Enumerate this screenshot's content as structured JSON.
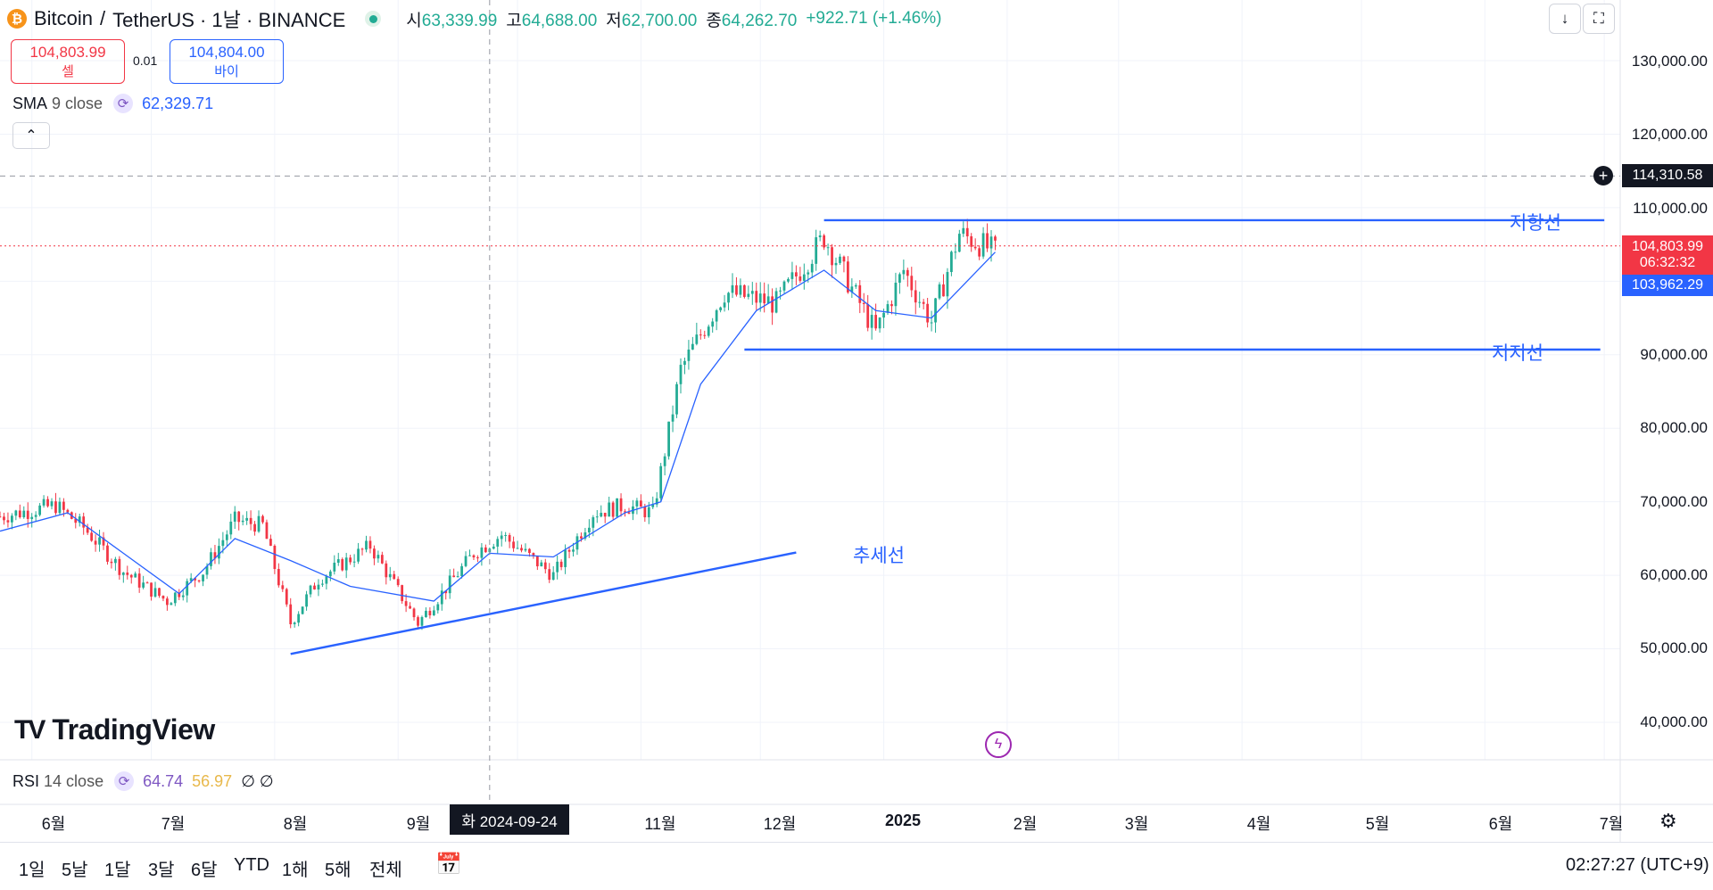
{
  "header": {
    "coin_glyph": "₿",
    "symbol": "Bitcoin",
    "separator": "/",
    "quote": "TetherUS · 1날 · BINANCE",
    "ohlc": [
      {
        "label": "시",
        "value": "63,339.99"
      },
      {
        "label": "고",
        "value": "64,688.00"
      },
      {
        "label": "저",
        "value": "62,700.00"
      },
      {
        "label": "종",
        "value": "64,262.70"
      }
    ],
    "change": "+922.71 (+1.46%)"
  },
  "trade": {
    "sell_price": "104,803.99",
    "sell_label": "셀",
    "lot": "0.01",
    "buy_price": "104,804.00",
    "buy_label": "바이"
  },
  "indicators": {
    "sma": {
      "name": "SMA",
      "params": "9 close",
      "value": "62,329.71"
    },
    "rsi": {
      "name": "RSI",
      "params": "14 close",
      "value1": "64.74",
      "value2": "56.97",
      "value3": "∅",
      "value4": "∅"
    }
  },
  "logo": {
    "mark": "TV",
    "text": "TradingView"
  },
  "price_axis": {
    "labels": [
      "130,000.00",
      "120,000.00",
      "110,000.00",
      "90,000.00",
      "80,000.00",
      "70,000.00",
      "60,000.00",
      "50,000.00",
      "40,000.00"
    ],
    "crosshair_price": "114,310.58",
    "last_price": "104,803.99",
    "countdown": "06:32:32",
    "sma_price": "103,962.29"
  },
  "time_axis": {
    "labels": [
      "6월",
      "7월",
      "8월",
      "9월",
      "11월",
      "12월",
      "2025",
      "2월",
      "3월",
      "4월",
      "5월",
      "6월",
      "7월"
    ],
    "crosshair_date": "화 2024-09-24"
  },
  "annotations": {
    "resistance": "저항선",
    "support": "지지선",
    "trend": "추세선"
  },
  "bottom_bar": {
    "ranges": [
      "1일",
      "5날",
      "1달",
      "3달",
      "6달",
      "YTD",
      "1해",
      "5해",
      "전체"
    ],
    "clock": "02:27:27 (UTC+9)"
  },
  "colors": {
    "up": "#22ab94",
    "down": "#f23645",
    "sma": "#2962ff",
    "lines": "#2962ff",
    "sell": "#f23645",
    "buy": "#2962ff"
  },
  "chart_data": {
    "type": "candlestick",
    "interval": "1 day",
    "x_range": [
      "2024-05-24",
      "2025-07-05"
    ],
    "ylim": [
      35000,
      135000
    ],
    "y_ticks": [
      40000,
      50000,
      60000,
      70000,
      80000,
      90000,
      100000,
      110000,
      120000,
      130000
    ],
    "grid": true,
    "close_path": [
      [
        "2024-05-24",
        68000
      ],
      [
        "2024-06-07",
        69500
      ],
      [
        "2024-06-14",
        66500
      ],
      [
        "2024-06-24",
        60500
      ],
      [
        "2024-07-05",
        56500
      ],
      [
        "2024-07-14",
        60500
      ],
      [
        "2024-07-22",
        67500
      ],
      [
        "2024-07-29",
        66800
      ],
      [
        "2024-08-05",
        53500
      ],
      [
        "2024-08-12",
        59500
      ],
      [
        "2024-08-25",
        64000
      ],
      [
        "2024-09-06",
        53500
      ],
      [
        "2024-09-20",
        63000
      ],
      [
        "2024-09-27",
        65500
      ],
      [
        "2024-10-10",
        60000
      ],
      [
        "2024-10-20",
        68500
      ],
      [
        "2024-10-28",
        69500
      ],
      [
        "2024-11-04",
        68500
      ],
      [
        "2024-11-11",
        88000
      ],
      [
        "2024-11-22",
        98500
      ],
      [
        "2024-12-05",
        97000
      ],
      [
        "2024-12-17",
        106000
      ],
      [
        "2024-12-30",
        93000
      ],
      [
        "2025-01-06",
        101500
      ],
      [
        "2025-01-13",
        94500
      ],
      [
        "2025-01-20",
        106500
      ],
      [
        "2025-01-29",
        104000
      ]
    ],
    "sma9_path": [
      [
        "2024-05-24",
        66000
      ],
      [
        "2024-06-10",
        68500
      ],
      [
        "2024-06-24",
        63000
      ],
      [
        "2024-07-08",
        57500
      ],
      [
        "2024-07-22",
        65000
      ],
      [
        "2024-08-05",
        62000
      ],
      [
        "2024-08-20",
        58500
      ],
      [
        "2024-09-10",
        56500
      ],
      [
        "2024-09-24",
        63000
      ],
      [
        "2024-10-10",
        62500
      ],
      [
        "2024-10-28",
        68500
      ],
      [
        "2024-11-06",
        70000
      ],
      [
        "2024-11-16",
        86000
      ],
      [
        "2024-11-30",
        96000
      ],
      [
        "2024-12-17",
        101500
      ],
      [
        "2024-12-30",
        96000
      ],
      [
        "2025-01-13",
        95000
      ],
      [
        "2025-01-29",
        103962
      ]
    ],
    "current_price": 104803.99,
    "crosshair": {
      "date": "2024-09-24",
      "price": 114310.58
    },
    "drawings": [
      {
        "label": "저항선",
        "from": [
          "2024-12-17",
          108300
        ],
        "to": [
          "2025-07-01",
          108300
        ]
      },
      {
        "label": "지지선",
        "from": [
          "2024-11-27",
          90700
        ],
        "to": [
          "2025-06-30",
          90700
        ]
      },
      {
        "label": "추세선",
        "from": [
          "2024-08-05",
          49300
        ],
        "to": [
          "2024-12-10",
          63100
        ]
      }
    ]
  }
}
